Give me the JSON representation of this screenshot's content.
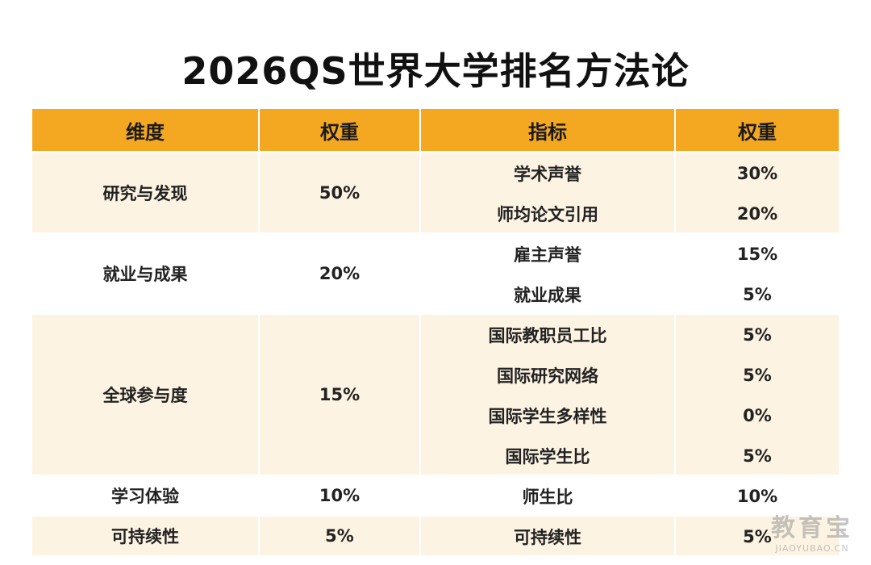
{
  "header": {
    "title": "2026QS世界大学排名方法论"
  },
  "table": {
    "columns": [
      "维度",
      "权重",
      "指标",
      "权重"
    ],
    "groups": [
      {
        "dimension": "研究与发现",
        "weight": "50%",
        "indicators": [
          {
            "name": "学术声誉",
            "weight": "30%"
          },
          {
            "name": "师均论文引用",
            "weight": "20%"
          }
        ]
      },
      {
        "dimension": "就业与成果",
        "weight": "20%",
        "indicators": [
          {
            "name": "雇主声誉",
            "weight": "15%"
          },
          {
            "name": "就业成果",
            "weight": "5%"
          }
        ]
      },
      {
        "dimension": "全球参与度",
        "weight": "15%",
        "indicators": [
          {
            "name": "国际教职员工比",
            "weight": "5%"
          },
          {
            "name": "国际研究网络",
            "weight": "5%"
          },
          {
            "name": "国际学生多样性",
            "weight": "0%"
          },
          {
            "name": "国际学生比",
            "weight": "5%"
          }
        ]
      },
      {
        "dimension": "学习体验",
        "weight": "10%",
        "indicators": [
          {
            "name": "师生比",
            "weight": "10%"
          }
        ]
      },
      {
        "dimension": "可持续性",
        "weight": "5%",
        "indicators": [
          {
            "name": "可持续性",
            "weight": "5%"
          }
        ]
      }
    ]
  },
  "watermark": {
    "text": "教育宝",
    "url": "JIAOYUBAO.CN"
  }
}
